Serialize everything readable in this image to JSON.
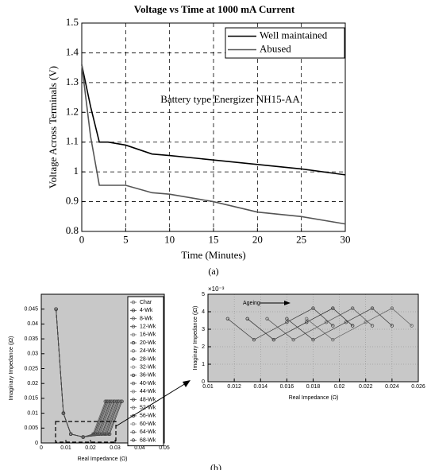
{
  "chart_data": [
    {
      "type": "line",
      "title": "Voltage vs Time at 1000 mA Current",
      "x_label": "Time (Minutes)",
      "y_label": "Voltage Across Terminals (V)",
      "annotation": "Battery type Energizer NH15-AA",
      "sublabel": "(a)",
      "legend": "upper right",
      "grid": true,
      "xlim": [
        0,
        30
      ],
      "ylim": [
        0.8,
        1.5
      ],
      "xticks": [
        0,
        5,
        10,
        15,
        20,
        25,
        30
      ],
      "yticks": [
        0.8,
        0.9,
        1,
        1.1,
        1.2,
        1.3,
        1.4,
        1.5
      ],
      "x": [
        0,
        1,
        2,
        3,
        5,
        8,
        10,
        15,
        20,
        25,
        30
      ],
      "series": [
        {
          "name": "Well maintained",
          "color": "#000000",
          "values": [
            1.36,
            1.22,
            1.1,
            1.1,
            1.09,
            1.06,
            1.055,
            1.04,
            1.025,
            1.01,
            0.99
          ]
        },
        {
          "name": "Abused",
          "color": "#555555",
          "values": [
            1.36,
            1.12,
            0.955,
            0.955,
            0.955,
            0.93,
            0.925,
            0.9,
            0.865,
            0.85,
            0.825
          ]
        }
      ]
    },
    {
      "type": "line",
      "markers": true,
      "x_label": "Real Impedance (Ω)",
      "y_label": "Imaginary Impedance (jΩ)",
      "sublabel": "(b)",
      "legend": "upper right",
      "grid": false,
      "background": "#c8c8c8",
      "xlim": [
        0,
        0.05
      ],
      "ylim": [
        0,
        0.05
      ],
      "xticks": [
        0,
        0.01,
        0.02,
        0.03,
        0.04,
        0.05
      ],
      "yticks": [
        0,
        0.005,
        0.01,
        0.015,
        0.02,
        0.025,
        0.03,
        0.035,
        0.04,
        0.045
      ],
      "series": [
        {
          "name": "Char",
          "color": "#666666",
          "x": [
            0.006,
            0.009,
            0.012,
            0.017,
            0.021,
            0.026
          ],
          "values": [
            0.045,
            0.01,
            0.003,
            0.002,
            0.003,
            0.014
          ]
        },
        {
          "name": "4-Wk",
          "color": "#333333",
          "x": [
            0.006,
            0.009,
            0.012,
            0.017,
            0.0214,
            0.0264
          ],
          "values": [
            0.045,
            0.01,
            0.003,
            0.002,
            0.003,
            0.014
          ]
        },
        {
          "name": "8-Wk",
          "color": "#555555",
          "x": [
            0.006,
            0.009,
            0.012,
            0.017,
            0.0218,
            0.0268
          ],
          "values": [
            0.045,
            0.01,
            0.003,
            0.002,
            0.003,
            0.014
          ]
        },
        {
          "name": "12-Wk",
          "color": "#444444",
          "x": [
            0.006,
            0.009,
            0.012,
            0.017,
            0.0222,
            0.0272
          ],
          "values": [
            0.045,
            0.01,
            0.003,
            0.002,
            0.003,
            0.014
          ]
        },
        {
          "name": "16-Wk",
          "color": "#777777",
          "x": [
            0.006,
            0.009,
            0.012,
            0.017,
            0.0226,
            0.0276
          ],
          "values": [
            0.045,
            0.01,
            0.003,
            0.002,
            0.003,
            0.014
          ]
        },
        {
          "name": "20-Wk",
          "color": "#333333",
          "x": [
            0.006,
            0.009,
            0.012,
            0.017,
            0.023,
            0.028
          ],
          "values": [
            0.045,
            0.01,
            0.003,
            0.002,
            0.003,
            0.014
          ]
        },
        {
          "name": "24-Wk",
          "color": "#666666",
          "x": [
            0.006,
            0.009,
            0.012,
            0.017,
            0.0234,
            0.0284
          ],
          "values": [
            0.045,
            0.01,
            0.003,
            0.002,
            0.003,
            0.014
          ]
        },
        {
          "name": "28-Wk",
          "color": "#444444",
          "x": [
            0.006,
            0.009,
            0.012,
            0.017,
            0.0238,
            0.0288
          ],
          "values": [
            0.045,
            0.01,
            0.003,
            0.002,
            0.003,
            0.014
          ]
        },
        {
          "name": "32-Wk",
          "color": "#888888",
          "x": [
            0.006,
            0.009,
            0.012,
            0.017,
            0.0242,
            0.0292
          ],
          "values": [
            0.045,
            0.01,
            0.003,
            0.002,
            0.003,
            0.014
          ]
        },
        {
          "name": "36-Wk",
          "color": "#333333",
          "x": [
            0.006,
            0.009,
            0.012,
            0.017,
            0.0246,
            0.0296
          ],
          "values": [
            0.045,
            0.01,
            0.003,
            0.002,
            0.003,
            0.014
          ]
        },
        {
          "name": "40-Wk",
          "color": "#555555",
          "x": [
            0.006,
            0.009,
            0.012,
            0.017,
            0.025,
            0.03
          ],
          "values": [
            0.045,
            0.01,
            0.003,
            0.002,
            0.003,
            0.014
          ]
        },
        {
          "name": "44-Wk",
          "color": "#777777",
          "x": [
            0.006,
            0.009,
            0.012,
            0.017,
            0.0254,
            0.0304
          ],
          "values": [
            0.045,
            0.01,
            0.003,
            0.002,
            0.003,
            0.014
          ]
        },
        {
          "name": "48-Wk",
          "color": "#444444",
          "x": [
            0.006,
            0.009,
            0.012,
            0.017,
            0.0258,
            0.0308
          ],
          "values": [
            0.045,
            0.01,
            0.003,
            0.002,
            0.003,
            0.014
          ]
        },
        {
          "name": "52-Wk",
          "color": "#666666",
          "x": [
            0.006,
            0.009,
            0.012,
            0.017,
            0.0262,
            0.0312
          ],
          "values": [
            0.045,
            0.01,
            0.003,
            0.002,
            0.003,
            0.014
          ]
        },
        {
          "name": "56-Wk",
          "color": "#333333",
          "x": [
            0.006,
            0.009,
            0.012,
            0.017,
            0.0266,
            0.0316
          ],
          "values": [
            0.045,
            0.01,
            0.003,
            0.002,
            0.003,
            0.014
          ]
        },
        {
          "name": "60-Wk",
          "color": "#888888",
          "x": [
            0.006,
            0.009,
            0.012,
            0.017,
            0.027,
            0.032
          ],
          "values": [
            0.045,
            0.01,
            0.003,
            0.002,
            0.003,
            0.014
          ]
        },
        {
          "name": "64-Wk",
          "color": "#555555",
          "x": [
            0.006,
            0.009,
            0.012,
            0.017,
            0.0274,
            0.0324
          ],
          "values": [
            0.045,
            0.01,
            0.003,
            0.002,
            0.003,
            0.014
          ]
        },
        {
          "name": "68-Wk",
          "color": "#444444",
          "x": [
            0.006,
            0.009,
            0.012,
            0.017,
            0.0278,
            0.0328
          ],
          "values": [
            0.045,
            0.01,
            0.003,
            0.002,
            0.003,
            0.014
          ]
        }
      ]
    },
    {
      "type": "line",
      "markers": true,
      "x_label": "Real Impedance (Ω)",
      "y_label": "Imaginary Impedance (jΩ)",
      "y_scale_label": "×10⁻³",
      "annotation": "Ageing",
      "grid": true,
      "background": "#c8c8c8",
      "xlim": [
        0.01,
        0.026
      ],
      "ylim": [
        0,
        5
      ],
      "xticks": [
        0.01,
        0.012,
        0.014,
        0.016,
        0.018,
        0.02,
        0.022,
        0.024,
        0.026
      ],
      "yticks": [
        0,
        1,
        2,
        3,
        4,
        5
      ],
      "series": [
        {
          "color": "#444444",
          "x": [
            0.0115,
            0.0135,
            0.016,
            0.018,
            0.0195
          ],
          "values": [
            3.6,
            2.4,
            3.4,
            4.2,
            3.2
          ]
        },
        {
          "color": "#333333",
          "x": [
            0.013,
            0.015,
            0.0175,
            0.0195,
            0.021
          ],
          "values": [
            3.6,
            2.4,
            3.4,
            4.2,
            3.2
          ]
        },
        {
          "color": "#555555",
          "x": [
            0.0145,
            0.0165,
            0.019,
            0.021,
            0.0225
          ],
          "values": [
            3.6,
            2.4,
            3.4,
            4.2,
            3.2
          ]
        },
        {
          "color": "#444444",
          "x": [
            0.016,
            0.018,
            0.0205,
            0.0225,
            0.024
          ],
          "values": [
            3.6,
            2.4,
            3.4,
            4.2,
            3.2
          ]
        },
        {
          "color": "#666666",
          "x": [
            0.0175,
            0.0195,
            0.022,
            0.024,
            0.0255
          ],
          "values": [
            3.6,
            2.4,
            3.4,
            4.2,
            3.2
          ]
        }
      ]
    }
  ]
}
